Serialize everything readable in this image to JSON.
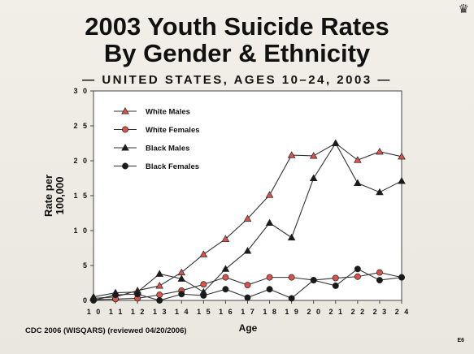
{
  "slide": {
    "title_line1": "2003 Youth Suicide Rates",
    "title_line2": "By Gender & Ethnicity",
    "subtitle": "— UNITED STATES, AGES 10–24, 2003 —",
    "source": "CDC 2006 (WISQARS) (reviewed 04/20/2006)",
    "slide_number": "E6",
    "corner_icon": "crown-icon"
  },
  "chart_data": {
    "type": "line",
    "title": "",
    "xlabel": "Age",
    "ylabel": "Rate per 100,000",
    "x": [
      10,
      11,
      12,
      13,
      14,
      15,
      16,
      17,
      18,
      19,
      20,
      21,
      22,
      23,
      24
    ],
    "xlim": [
      10,
      24
    ],
    "ylim": [
      0,
      30
    ],
    "yticks": [
      0,
      5,
      10,
      15,
      20,
      25,
      30
    ],
    "ytick_labels": [
      "0",
      "5",
      "1 0",
      "1 5",
      "2 0",
      "2 5",
      "3 0"
    ],
    "xtick_labels": [
      "1 0",
      "1 1",
      "1 2",
      "1 3",
      "1 4",
      "1 5",
      "1 6",
      "1 7",
      "1 8",
      "1 9",
      "2 0",
      "2 1",
      "2 2",
      "2 3",
      "2 4"
    ],
    "grid": false,
    "legend_position": "top-left",
    "series": [
      {
        "name": "White Males",
        "marker": "triangle",
        "marker_fill": "#d9534a",
        "line_color": "#333333",
        "values": [
          0.3,
          0.5,
          1.4,
          2.1,
          4.0,
          6.6,
          8.8,
          11.7,
          15.1,
          20.8,
          20.7,
          22.5,
          20.1,
          21.3,
          20.6
        ]
      },
      {
        "name": "White Females",
        "marker": "circle",
        "marker_fill": "#d9534a",
        "line_color": "#333333",
        "values": [
          0.1,
          0.2,
          0.3,
          0.8,
          1.4,
          2.3,
          3.3,
          2.2,
          3.3,
          3.3,
          2.9,
          3.2,
          3.4,
          4.0,
          3.3
        ]
      },
      {
        "name": "Black Males",
        "marker": "triangle",
        "marker_fill": "#1a1a1a",
        "line_color": "#333333",
        "values": [
          0.5,
          1.1,
          1.2,
          3.8,
          3.1,
          1.2,
          4.5,
          7.1,
          11.1,
          9.0,
          17.5,
          22.5,
          16.8,
          15.5,
          17.1
        ]
      },
      {
        "name": "Black Females",
        "marker": "circle",
        "marker_fill": "#1a1a1a",
        "line_color": "#333333",
        "values": [
          0.0,
          0.8,
          0.9,
          0.0,
          0.9,
          0.7,
          1.6,
          0.4,
          1.6,
          0.3,
          2.9,
          2.1,
          4.5,
          2.9,
          3.3
        ]
      }
    ]
  }
}
